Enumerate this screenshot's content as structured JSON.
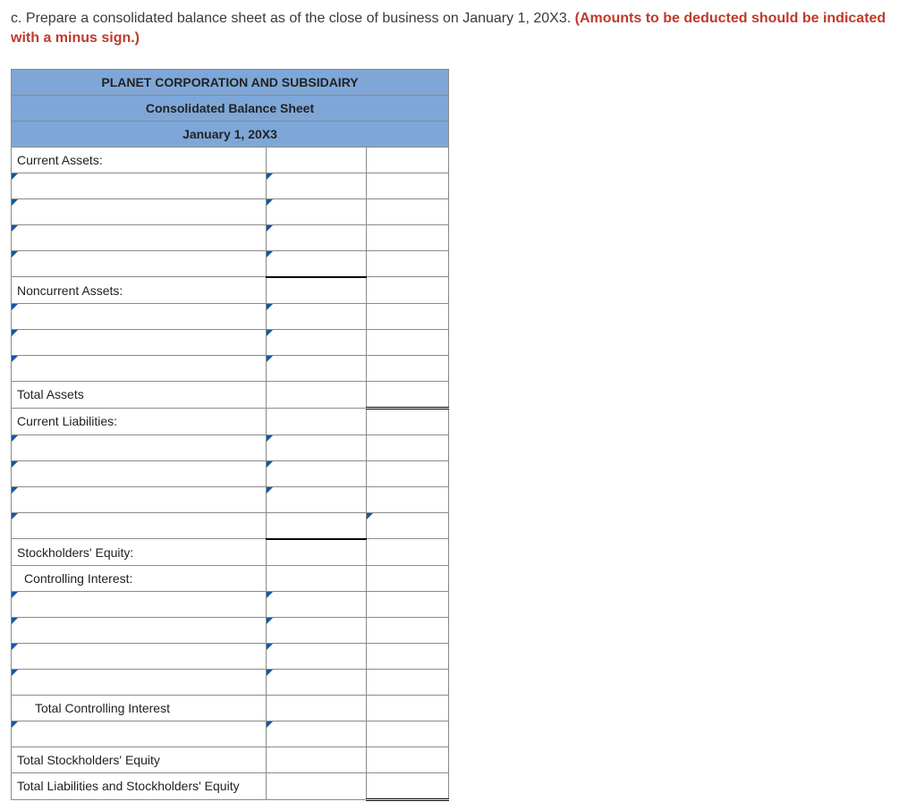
{
  "question": {
    "prefix": "c. Prepare a consolidated balance sheet as of the close of business on January 1, 20X3. ",
    "highlight": "(Amounts to be deducted should be indicated with a minus sign.)"
  },
  "sheet": {
    "header1": "PLANET CORPORATION AND SUBSIDAIRY",
    "header2": "Consolidated Balance Sheet",
    "header3": "January 1, 20X3",
    "rows": [
      {
        "label": "Current Assets:",
        "indent": 0,
        "ddLabel": false,
        "ddVal1": false,
        "val1Class": "",
        "val2Class": ""
      },
      {
        "label": "",
        "indent": 0,
        "ddLabel": true,
        "ddVal1": true,
        "val1Class": "",
        "val2Class": ""
      },
      {
        "label": "",
        "indent": 0,
        "ddLabel": true,
        "ddVal1": true,
        "val1Class": "",
        "val2Class": ""
      },
      {
        "label": "",
        "indent": 0,
        "ddLabel": true,
        "ddVal1": true,
        "val1Class": "",
        "val2Class": ""
      },
      {
        "label": "",
        "indent": 0,
        "ddLabel": true,
        "ddVal1": true,
        "val1Class": "thick-bottom",
        "val2Class": ""
      },
      {
        "label": "Noncurrent Assets:",
        "indent": 0,
        "ddLabel": false,
        "ddVal1": false,
        "val1Class": "",
        "val2Class": ""
      },
      {
        "label": "",
        "indent": 0,
        "ddLabel": true,
        "ddVal1": true,
        "val1Class": "",
        "val2Class": ""
      },
      {
        "label": "",
        "indent": 0,
        "ddLabel": true,
        "ddVal1": true,
        "val1Class": "",
        "val2Class": ""
      },
      {
        "label": "",
        "indent": 0,
        "ddLabel": true,
        "ddVal1": true,
        "val1Class": "",
        "val2Class": ""
      },
      {
        "label": "Total Assets",
        "indent": 0,
        "ddLabel": false,
        "ddVal1": false,
        "val1Class": "",
        "val2Class": "dbl-under"
      },
      {
        "label": "Current Liabilities:",
        "indent": 0,
        "ddLabel": false,
        "ddVal1": false,
        "val1Class": "",
        "val2Class": ""
      },
      {
        "label": "",
        "indent": 0,
        "ddLabel": true,
        "ddVal1": true,
        "val1Class": "",
        "val2Class": ""
      },
      {
        "label": "",
        "indent": 0,
        "ddLabel": true,
        "ddVal1": true,
        "val1Class": "",
        "val2Class": ""
      },
      {
        "label": "",
        "indent": 0,
        "ddLabel": true,
        "ddVal1": true,
        "val1Class": "",
        "val2Class": ""
      },
      {
        "label": "",
        "indent": 0,
        "ddLabel": true,
        "ddVal1": false,
        "val1Class": "thick-bottom",
        "val2Class": "",
        "ddVal2": true
      },
      {
        "label": "Stockholders' Equity:",
        "indent": 0,
        "ddLabel": false,
        "ddVal1": false,
        "val1Class": "",
        "val2Class": ""
      },
      {
        "label": "Controlling Interest:",
        "indent": 1,
        "ddLabel": false,
        "ddVal1": false,
        "val1Class": "",
        "val2Class": ""
      },
      {
        "label": "",
        "indent": 0,
        "ddLabel": true,
        "ddVal1": true,
        "val1Class": "",
        "val2Class": ""
      },
      {
        "label": "",
        "indent": 0,
        "ddLabel": true,
        "ddVal1": true,
        "val1Class": "",
        "val2Class": ""
      },
      {
        "label": "",
        "indent": 0,
        "ddLabel": true,
        "ddVal1": true,
        "val1Class": "",
        "val2Class": ""
      },
      {
        "label": "",
        "indent": 0,
        "ddLabel": true,
        "ddVal1": true,
        "val1Class": "",
        "val2Class": ""
      },
      {
        "label": "Total Controlling Interest",
        "indent": 2,
        "ddLabel": false,
        "ddVal1": false,
        "val1Class": "",
        "val2Class": ""
      },
      {
        "label": "",
        "indent": 0,
        "ddLabel": true,
        "ddVal1": true,
        "val1Class": "",
        "val2Class": ""
      },
      {
        "label": "Total Stockholders' Equity",
        "indent": 0,
        "ddLabel": false,
        "ddVal1": false,
        "val1Class": "",
        "val2Class": ""
      },
      {
        "label": "Total Liabilities and Stockholders' Equity",
        "indent": 0,
        "ddLabel": false,
        "ddVal1": false,
        "val1Class": "",
        "val2Class": "dbl-under"
      }
    ]
  },
  "colors": {
    "header_bg": "#7ea7d8",
    "border": "#8a8a8a",
    "dropdown_corner": "#1158a6",
    "highlight_text": "#c0392b"
  }
}
